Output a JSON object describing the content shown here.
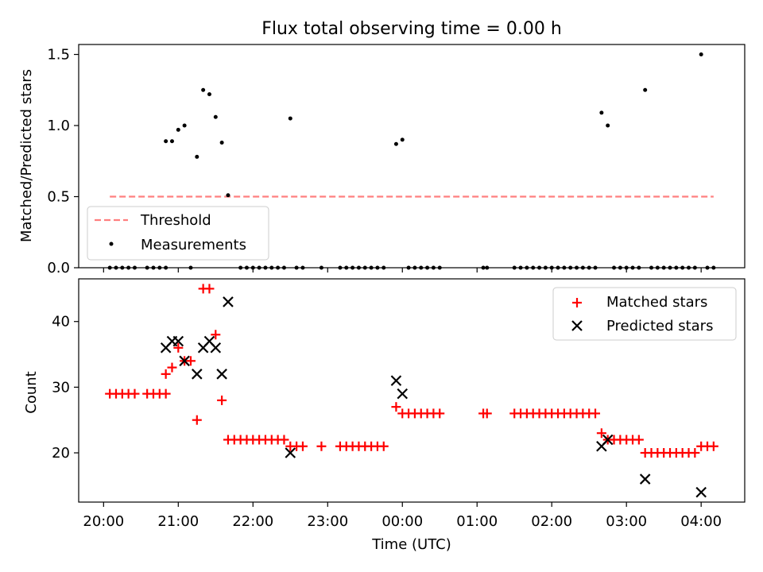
{
  "chart_data": [
    {
      "type": "scatter",
      "title": "Flux total observing time = 0.00 h",
      "xlabel": "",
      "ylabel": "Matched/Predicted stars",
      "ylim": [
        0,
        1.57
      ],
      "yticks": [
        0.0,
        0.5,
        1.0,
        1.5
      ],
      "ytick_labels": [
        "0.0",
        "0.5",
        "1.0",
        "1.5"
      ],
      "legend": {
        "placement": "lower-left",
        "entries": [
          "Threshold",
          "Measurements"
        ]
      },
      "threshold": {
        "name": "Threshold",
        "value": 0.5,
        "x_start": "20:05",
        "x_end": "04:10",
        "color": "#ff7f7f"
      },
      "series": [
        {
          "name": "Measurements",
          "color": "#000000",
          "points": [
            [
              "20:05",
              0
            ],
            [
              "20:10",
              0
            ],
            [
              "20:15",
              0
            ],
            [
              "20:20",
              0
            ],
            [
              "20:25",
              0
            ],
            [
              "20:35",
              0
            ],
            [
              "20:40",
              0
            ],
            [
              "20:45",
              0
            ],
            [
              "20:50",
              0
            ],
            [
              "20:50",
              0.89
            ],
            [
              "20:55",
              0.89
            ],
            [
              "21:00",
              0.97
            ],
            [
              "21:05",
              1.0
            ],
            [
              "21:10",
              0
            ],
            [
              "21:15",
              0.78
            ],
            [
              "21:20",
              1.25
            ],
            [
              "21:25",
              1.22
            ],
            [
              "21:30",
              1.06
            ],
            [
              "21:35",
              0.88
            ],
            [
              "21:40",
              0.51
            ],
            [
              "21:50",
              0
            ],
            [
              "21:55",
              0
            ],
            [
              "22:00",
              0
            ],
            [
              "22:05",
              0
            ],
            [
              "22:10",
              0
            ],
            [
              "22:15",
              0
            ],
            [
              "22:20",
              0
            ],
            [
              "22:25",
              0
            ],
            [
              "22:30",
              1.05
            ],
            [
              "22:35",
              0
            ],
            [
              "22:40",
              0
            ],
            [
              "22:55",
              0
            ],
            [
              "23:10",
              0
            ],
            [
              "23:15",
              0
            ],
            [
              "23:20",
              0
            ],
            [
              "23:25",
              0
            ],
            [
              "23:30",
              0
            ],
            [
              "23:35",
              0
            ],
            [
              "23:40",
              0
            ],
            [
              "23:45",
              0
            ],
            [
              "23:55",
              0.87
            ],
            [
              "00:00",
              0.9
            ],
            [
              "00:05",
              0
            ],
            [
              "00:10",
              0
            ],
            [
              "00:15",
              0
            ],
            [
              "00:20",
              0
            ],
            [
              "00:25",
              0
            ],
            [
              "00:30",
              0
            ],
            [
              "01:05",
              0
            ],
            [
              "01:08",
              0
            ],
            [
              "01:30",
              0
            ],
            [
              "01:35",
              0
            ],
            [
              "01:40",
              0
            ],
            [
              "01:45",
              0
            ],
            [
              "01:50",
              0
            ],
            [
              "01:55",
              0
            ],
            [
              "02:00",
              0
            ],
            [
              "02:05",
              0
            ],
            [
              "02:10",
              0
            ],
            [
              "02:15",
              0
            ],
            [
              "02:20",
              0
            ],
            [
              "02:25",
              0
            ],
            [
              "02:30",
              0
            ],
            [
              "02:35",
              0
            ],
            [
              "02:40",
              1.09
            ],
            [
              "02:45",
              1.0
            ],
            [
              "02:50",
              0
            ],
            [
              "02:55",
              0
            ],
            [
              "03:00",
              0
            ],
            [
              "03:05",
              0
            ],
            [
              "03:10",
              0
            ],
            [
              "03:15",
              1.25
            ],
            [
              "03:20",
              0
            ],
            [
              "03:25",
              0
            ],
            [
              "03:30",
              0
            ],
            [
              "03:35",
              0
            ],
            [
              "03:40",
              0
            ],
            [
              "03:45",
              0
            ],
            [
              "03:50",
              0
            ],
            [
              "03:55",
              0
            ],
            [
              "04:00",
              1.5
            ],
            [
              "04:05",
              0
            ],
            [
              "04:10",
              0
            ]
          ]
        }
      ]
    },
    {
      "type": "scatter",
      "title": "",
      "xlabel": "Time (UTC)",
      "ylabel": "Count",
      "xlim": [
        "19:40",
        "04:35"
      ],
      "xticks": [
        "20:00",
        "21:00",
        "22:00",
        "23:00",
        "00:00",
        "01:00",
        "02:00",
        "03:00",
        "04:00"
      ],
      "ylim": [
        12.5,
        46.5
      ],
      "yticks": [
        20,
        30,
        40
      ],
      "ytick_labels": [
        "20",
        "30",
        "40"
      ],
      "legend": {
        "placement": "top-right",
        "entries": [
          "Matched stars",
          "Predicted stars"
        ]
      },
      "series": [
        {
          "name": "Matched stars",
          "marker": "+",
          "color": "#ff0000",
          "points": [
            [
              "20:05",
              29
            ],
            [
              "20:10",
              29
            ],
            [
              "20:15",
              29
            ],
            [
              "20:20",
              29
            ],
            [
              "20:25",
              29
            ],
            [
              "20:35",
              29
            ],
            [
              "20:40",
              29
            ],
            [
              "20:45",
              29
            ],
            [
              "20:50",
              29
            ],
            [
              "20:50",
              32
            ],
            [
              "20:55",
              33
            ],
            [
              "21:00",
              36
            ],
            [
              "21:05",
              34
            ],
            [
              "21:10",
              34
            ],
            [
              "21:15",
              25
            ],
            [
              "21:20",
              45
            ],
            [
              "21:25",
              45
            ],
            [
              "21:30",
              38
            ],
            [
              "21:35",
              28
            ],
            [
              "21:40",
              22
            ],
            [
              "21:45",
              22
            ],
            [
              "21:50",
              22
            ],
            [
              "21:55",
              22
            ],
            [
              "22:00",
              22
            ],
            [
              "22:05",
              22
            ],
            [
              "22:10",
              22
            ],
            [
              "22:15",
              22
            ],
            [
              "22:20",
              22
            ],
            [
              "22:25",
              22
            ],
            [
              "22:30",
              21
            ],
            [
              "22:35",
              21
            ],
            [
              "22:40",
              21
            ],
            [
              "22:55",
              21
            ],
            [
              "23:10",
              21
            ],
            [
              "23:15",
              21
            ],
            [
              "23:20",
              21
            ],
            [
              "23:25",
              21
            ],
            [
              "23:30",
              21
            ],
            [
              "23:35",
              21
            ],
            [
              "23:40",
              21
            ],
            [
              "23:45",
              21
            ],
            [
              "23:55",
              27
            ],
            [
              "00:00",
              26
            ],
            [
              "00:05",
              26
            ],
            [
              "00:10",
              26
            ],
            [
              "00:15",
              26
            ],
            [
              "00:20",
              26
            ],
            [
              "00:25",
              26
            ],
            [
              "00:30",
              26
            ],
            [
              "01:05",
              26
            ],
            [
              "01:08",
              26
            ],
            [
              "01:30",
              26
            ],
            [
              "01:35",
              26
            ],
            [
              "01:40",
              26
            ],
            [
              "01:45",
              26
            ],
            [
              "01:50",
              26
            ],
            [
              "01:55",
              26
            ],
            [
              "02:00",
              26
            ],
            [
              "02:05",
              26
            ],
            [
              "02:10",
              26
            ],
            [
              "02:15",
              26
            ],
            [
              "02:20",
              26
            ],
            [
              "02:25",
              26
            ],
            [
              "02:30",
              26
            ],
            [
              "02:35",
              26
            ],
            [
              "02:40",
              23
            ],
            [
              "02:45",
              22
            ],
            [
              "02:50",
              22
            ],
            [
              "02:55",
              22
            ],
            [
              "03:00",
              22
            ],
            [
              "03:05",
              22
            ],
            [
              "03:10",
              22
            ],
            [
              "03:15",
              20
            ],
            [
              "03:20",
              20
            ],
            [
              "03:25",
              20
            ],
            [
              "03:30",
              20
            ],
            [
              "03:35",
              20
            ],
            [
              "03:40",
              20
            ],
            [
              "03:45",
              20
            ],
            [
              "03:50",
              20
            ],
            [
              "03:55",
              20
            ],
            [
              "04:00",
              21
            ],
            [
              "04:05",
              21
            ],
            [
              "04:10",
              21
            ]
          ]
        },
        {
          "name": "Predicted stars",
          "marker": "x",
          "color": "#000000",
          "points": [
            [
              "20:50",
              36
            ],
            [
              "20:55",
              37
            ],
            [
              "21:00",
              37
            ],
            [
              "21:05",
              34
            ],
            [
              "21:15",
              32
            ],
            [
              "21:20",
              36
            ],
            [
              "21:25",
              37
            ],
            [
              "21:30",
              36
            ],
            [
              "21:35",
              32
            ],
            [
              "21:40",
              43
            ],
            [
              "22:30",
              20
            ],
            [
              "23:55",
              31
            ],
            [
              "00:00",
              29
            ],
            [
              "02:40",
              21
            ],
            [
              "02:45",
              22
            ],
            [
              "03:15",
              16
            ],
            [
              "04:00",
              14
            ]
          ]
        }
      ]
    }
  ]
}
